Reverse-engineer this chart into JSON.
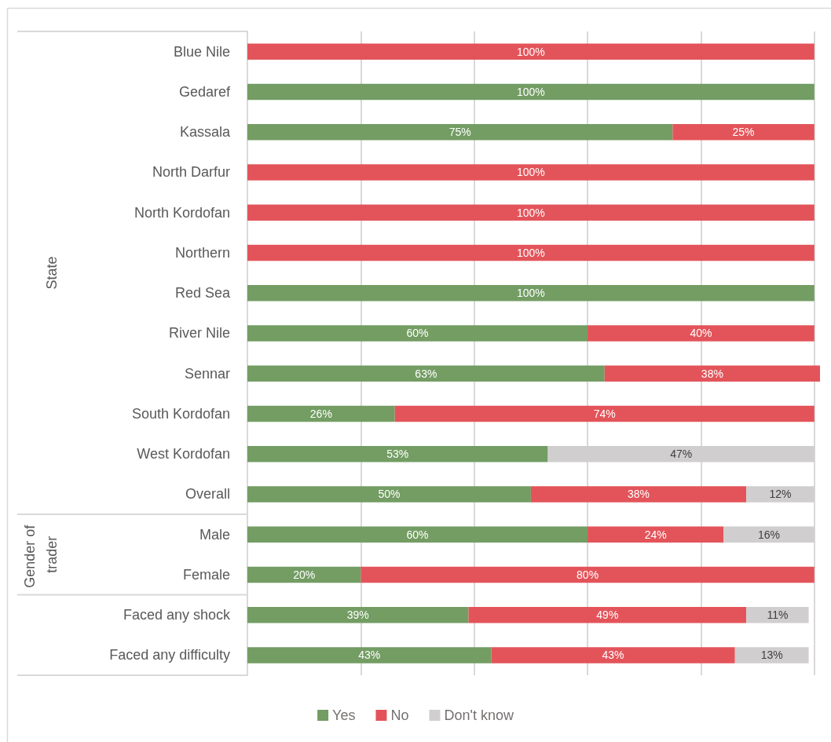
{
  "chart_data": {
    "type": "bar",
    "orientation": "horizontal",
    "stacked": true,
    "categories": [
      "Blue Nile",
      "Gedaref",
      "Kassala",
      "North Darfur",
      "North Kordofan",
      "Northern",
      "Red Sea",
      "River Nile",
      "Sennar",
      "South Kordofan",
      "West Kordofan",
      "Overall",
      "Male",
      "Female",
      "Faced any shock",
      "Faced any difficulty"
    ],
    "series": [
      {
        "name": "Yes",
        "color": "#739d63",
        "values": [
          null,
          100,
          75,
          null,
          null,
          null,
          100,
          60,
          63,
          26,
          53,
          50,
          60,
          20,
          39,
          43
        ],
        "value_labels": [
          null,
          "100%",
          "75%",
          null,
          null,
          null,
          "100%",
          "60%",
          "63%",
          "26%",
          "53%",
          "50%",
          "60%",
          "20%",
          "39%",
          "43%"
        ]
      },
      {
        "name": "No",
        "color": "#e3545a",
        "values": [
          100,
          null,
          25,
          100,
          100,
          100,
          null,
          40,
          38,
          74,
          null,
          38,
          24,
          80,
          49,
          43
        ],
        "value_labels": [
          "100%",
          null,
          "25%",
          "100%",
          "100%",
          "100%",
          null,
          "40%",
          "38%",
          "74%",
          null,
          "38%",
          "24%",
          "80%",
          "49%",
          "43%"
        ]
      },
      {
        "name": "Don't know",
        "color": "#d0cece",
        "values": [
          null,
          null,
          null,
          null,
          null,
          null,
          null,
          null,
          null,
          null,
          47,
          12,
          16,
          null,
          11,
          13
        ],
        "value_labels": [
          null,
          null,
          null,
          null,
          null,
          null,
          null,
          null,
          null,
          null,
          "47%",
          "12%",
          "16%",
          null,
          "11%",
          "13%"
        ]
      }
    ],
    "xlim": [
      0,
      101
    ],
    "xticks": [
      {
        "value": 0,
        "label": null
      },
      {
        "value": 20,
        "label": null
      },
      {
        "value": 40,
        "label": null
      },
      {
        "value": 60,
        "label": null
      },
      {
        "value": 80,
        "label": null
      },
      {
        "value": 100,
        "label": null
      }
    ],
    "tick_labels": "y",
    "grid": "x",
    "legend": "bottom",
    "annotations": [
      "State",
      "Gender of trader"
    ]
  }
}
